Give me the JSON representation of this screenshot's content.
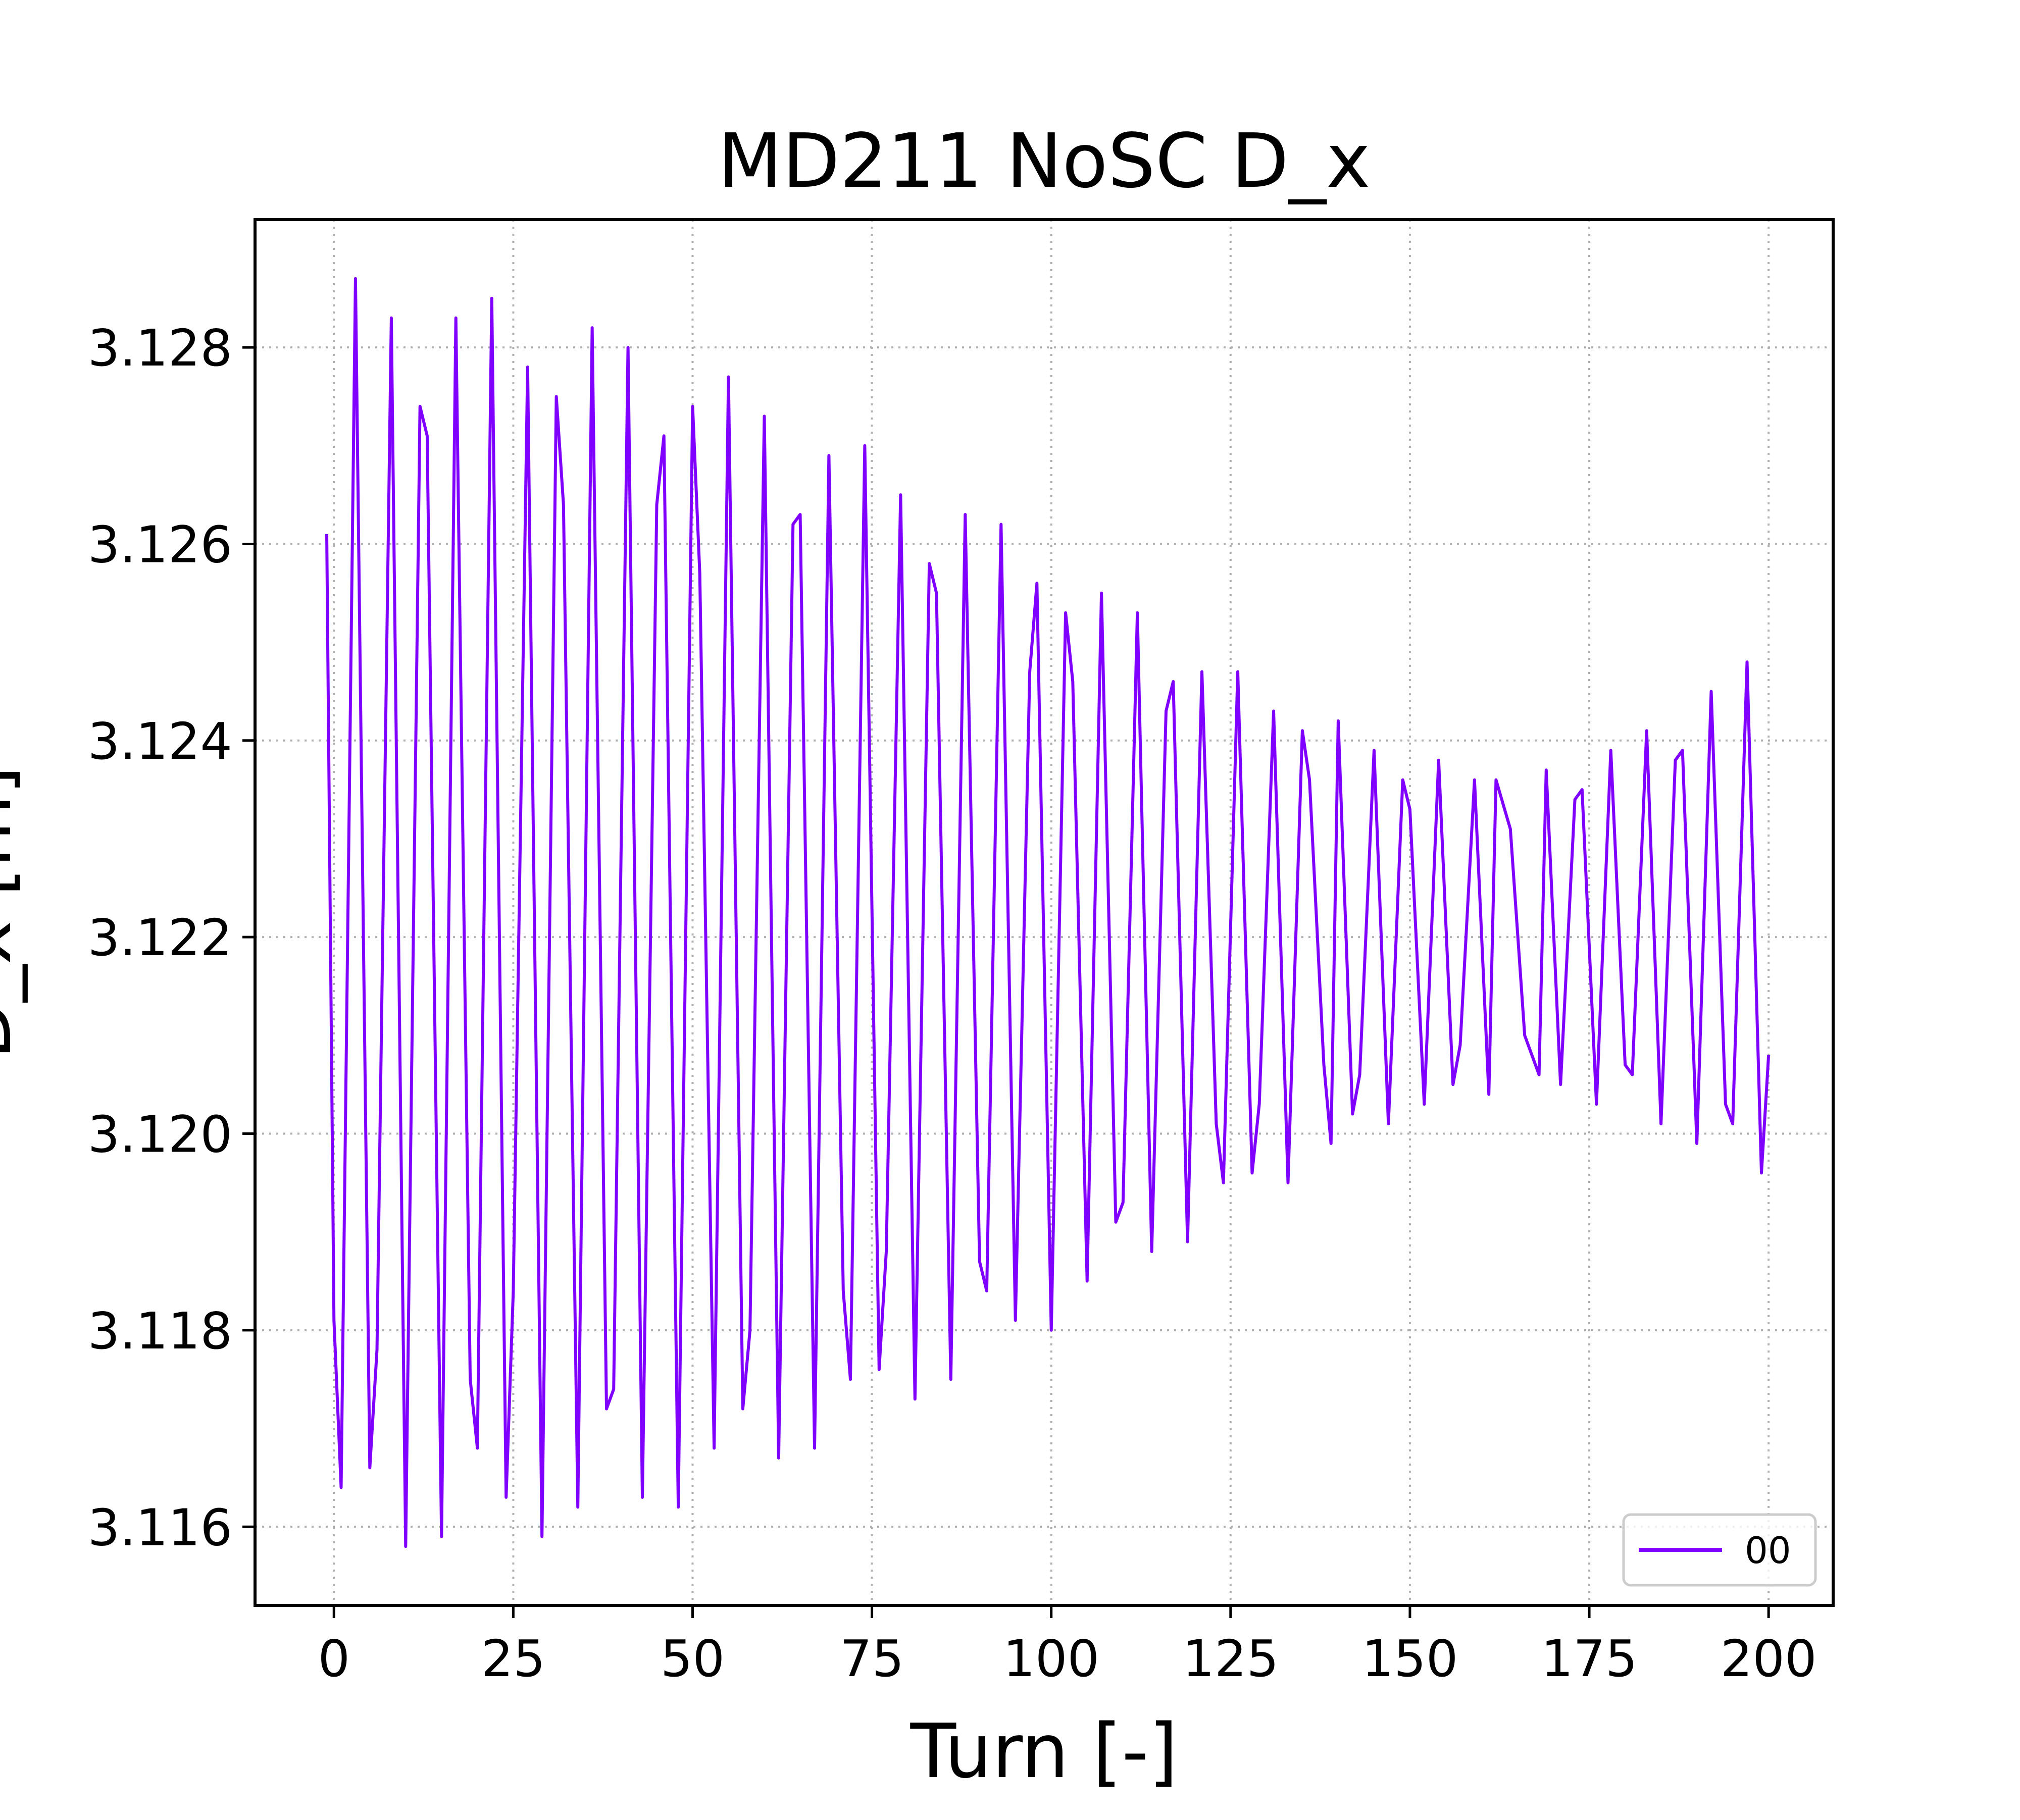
{
  "chart_data": {
    "type": "line",
    "title": "MD211 NoSC D_x",
    "xlabel": "Turn [-]",
    "ylabel": "D_x [m]",
    "xlim": [
      -11,
      209
    ],
    "ylim": [
      3.1152,
      3.1293
    ],
    "xticks": [
      0,
      25,
      50,
      75,
      100,
      125,
      150,
      175,
      200
    ],
    "xtick_labels": [
      "0",
      "25",
      "50",
      "75",
      "100",
      "125",
      "150",
      "175",
      "200"
    ],
    "yticks": [
      3.116,
      3.118,
      3.12,
      3.122,
      3.124,
      3.126,
      3.128
    ],
    "ytick_labels": [
      "3.116",
      "3.118",
      "3.120",
      "3.122",
      "3.124",
      "3.126",
      "3.128"
    ],
    "grid": true,
    "legend_position": "lower-right",
    "series": [
      {
        "name": "00",
        "color": "#8000ff",
        "x": [
          -1,
          0,
          1,
          3,
          5,
          6,
          8,
          10,
          12,
          13,
          15,
          17,
          19,
          20,
          22,
          24,
          25,
          27,
          29,
          31,
          32,
          34,
          36,
          38,
          39,
          41,
          43,
          45,
          46,
          48,
          50,
          51,
          53,
          55,
          57,
          58,
          60,
          62,
          64,
          65,
          67,
          69,
          71,
          72,
          74,
          76,
          77,
          79,
          81,
          83,
          84,
          86,
          88,
          90,
          91,
          93,
          95,
          97,
          98,
          100,
          102,
          103,
          105,
          107,
          109,
          110,
          112,
          114,
          116,
          117,
          119,
          121,
          123,
          124,
          126,
          128,
          129,
          131,
          133,
          135,
          136,
          138,
          139,
          140,
          142,
          143,
          145,
          147,
          149,
          150,
          152,
          154,
          156,
          157,
          159,
          161,
          162,
          164,
          166,
          168,
          169,
          171,
          173,
          174,
          176,
          178,
          180,
          181,
          183,
          185,
          187,
          188,
          190,
          192,
          194,
          195,
          197,
          199,
          200
        ],
        "y": [
          3.1261,
          3.1181,
          3.1164,
          3.1287,
          3.1166,
          3.1178,
          3.1283,
          3.1158,
          3.1274,
          3.1271,
          3.1159,
          3.1283,
          3.1175,
          3.1168,
          3.1285,
          3.1163,
          3.1184,
          3.1278,
          3.1159,
          3.1275,
          3.1264,
          3.1162,
          3.1282,
          3.1172,
          3.1174,
          3.128,
          3.1163,
          3.1264,
          3.1271,
          3.1162,
          3.1274,
          3.1257,
          3.1168,
          3.1277,
          3.1172,
          3.118,
          3.1273,
          3.1167,
          3.1262,
          3.1263,
          3.1168,
          3.1269,
          3.1184,
          3.1175,
          3.127,
          3.1176,
          3.1188,
          3.1265,
          3.1173,
          3.1258,
          3.1255,
          3.1175,
          3.1263,
          3.1187,
          3.1184,
          3.1262,
          3.1181,
          3.1247,
          3.1256,
          3.118,
          3.1253,
          3.1246,
          3.1185,
          3.1255,
          3.1191,
          3.1193,
          3.1253,
          3.1188,
          3.1243,
          3.1246,
          3.1189,
          3.1247,
          3.1201,
          3.1195,
          3.1247,
          3.1196,
          3.1203,
          3.1243,
          3.1195,
          3.1241,
          3.1236,
          3.1207,
          3.1199,
          3.1242,
          3.1202,
          3.1206,
          3.1239,
          3.1201,
          3.1236,
          3.1233,
          3.1203,
          3.1238,
          3.1205,
          3.1209,
          3.1236,
          3.1204,
          3.1236,
          3.1231,
          3.121,
          3.1206,
          3.1237,
          3.1205,
          3.1234,
          3.1235,
          3.1203,
          3.1239,
          3.1207,
          3.1206,
          3.1241,
          3.1201,
          3.1238,
          3.1239,
          3.1199,
          3.1245,
          3.1203,
          3.1201,
          3.1248,
          3.1196,
          3.1208
        ]
      }
    ]
  }
}
